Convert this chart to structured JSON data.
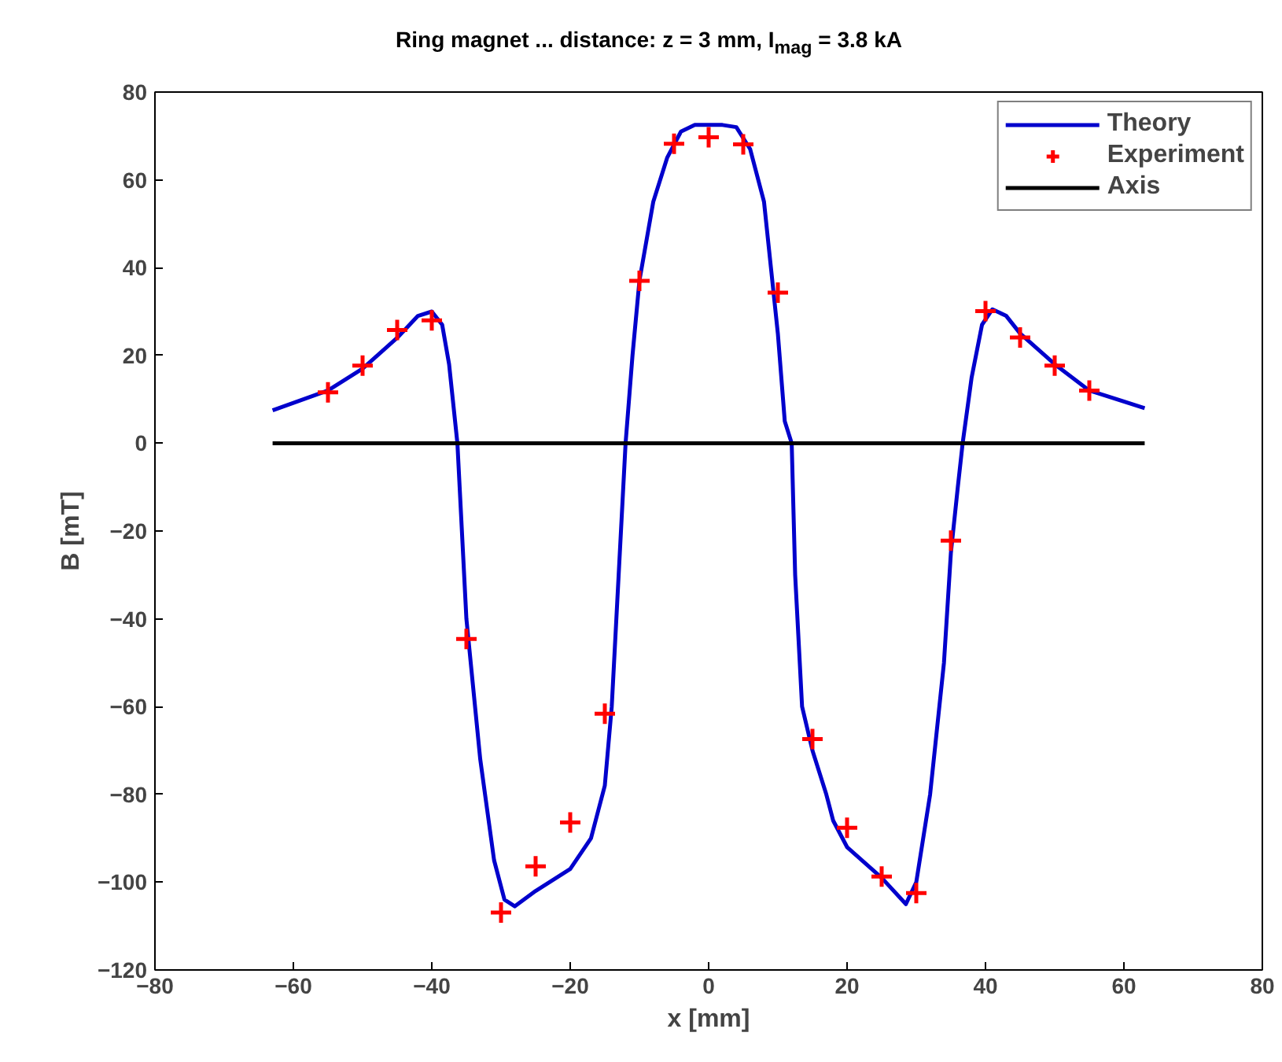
{
  "chart_data": {
    "type": "line",
    "title": "Ring magnet ... distance: z = 3 mm, I$_{mag}$ = 3.8 kA",
    "xlabel": "x [mm]",
    "ylabel": "B [mT]",
    "xlim": [
      -80,
      80
    ],
    "ylim": [
      -120,
      80
    ],
    "xticks": [
      -80,
      -60,
      -40,
      -20,
      0,
      20,
      40,
      60,
      80
    ],
    "yticks": [
      -120,
      -100,
      -80,
      -60,
      -40,
      -20,
      0,
      20,
      40,
      60,
      80
    ],
    "grid": false,
    "legend": "top right",
    "series": [
      {
        "name": "Theory",
        "color": "#0000cc",
        "line_style": "solid",
        "x": [
          -63,
          -55,
          -50,
          -45,
          -42,
          -40,
          -38.5,
          -37.5,
          -36.3,
          -35,
          -33,
          -31,
          -29.5,
          -28,
          -25,
          -20,
          -17,
          -15,
          -14,
          -13,
          -12,
          -11,
          -10,
          -8,
          -6,
          -4,
          -2,
          2,
          4,
          6,
          8,
          9,
          10,
          11,
          12,
          12.5,
          13.5,
          15,
          17,
          18,
          20,
          25,
          28.5,
          30,
          32,
          34,
          35,
          36,
          36.7,
          38,
          39.5,
          41,
          43,
          45,
          50,
          55,
          63
        ],
        "values": [
          7.5,
          12,
          17,
          24,
          29,
          30,
          27,
          18,
          0,
          -40,
          -72,
          -95,
          -104,
          -105.5,
          -102,
          -97,
          -90,
          -78,
          -60,
          -30,
          0,
          20,
          37,
          55,
          65,
          71,
          72.5,
          72.5,
          72,
          67,
          55,
          40,
          25,
          5,
          0,
          -30,
          -60,
          -70,
          -80,
          -86,
          -92,
          -99,
          -105,
          -100,
          -80,
          -50,
          -25,
          -10,
          0,
          15,
          27,
          30.5,
          29,
          25,
          18,
          12,
          8
        ]
      },
      {
        "name": "Experiment",
        "type": "scatter",
        "marker": "cross",
        "color": "#ff0000",
        "x": [
          -55,
          -50,
          -45,
          -40,
          -35,
          -30,
          -25,
          -20,
          -15,
          -10,
          -5,
          0,
          5,
          10,
          15,
          20,
          25,
          30,
          35,
          40,
          45,
          50,
          55
        ],
        "values": [
          11.6,
          17.7,
          25.8,
          28,
          -44.6,
          -106.9,
          -96.4,
          -86.4,
          -61.6,
          37,
          68.2,
          69.7,
          68.1,
          34.3,
          -67.4,
          -87.6,
          -98.7,
          -102.5,
          -22.2,
          30.1,
          24.1,
          17.7,
          12
        ]
      },
      {
        "name": "Axis",
        "color": "#000000",
        "line_style": "solid",
        "x": [
          -63,
          63
        ],
        "values": [
          0,
          0
        ]
      }
    ]
  }
}
